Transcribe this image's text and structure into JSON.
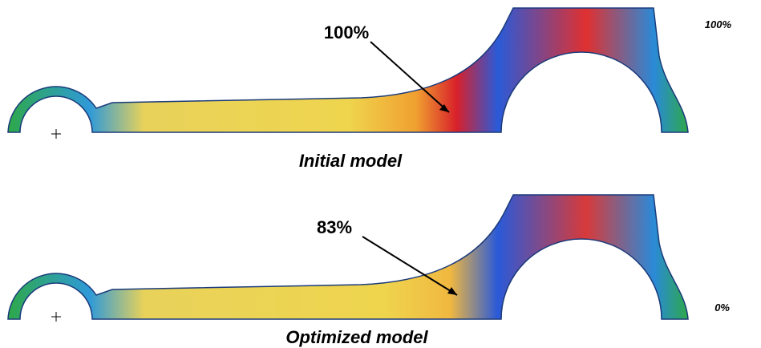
{
  "scale": {
    "max": "100%",
    "min": "0%"
  },
  "panels": [
    {
      "annotation": "100%",
      "caption": "Initial model"
    },
    {
      "annotation": "83%",
      "caption": "Optimized model"
    }
  ]
}
